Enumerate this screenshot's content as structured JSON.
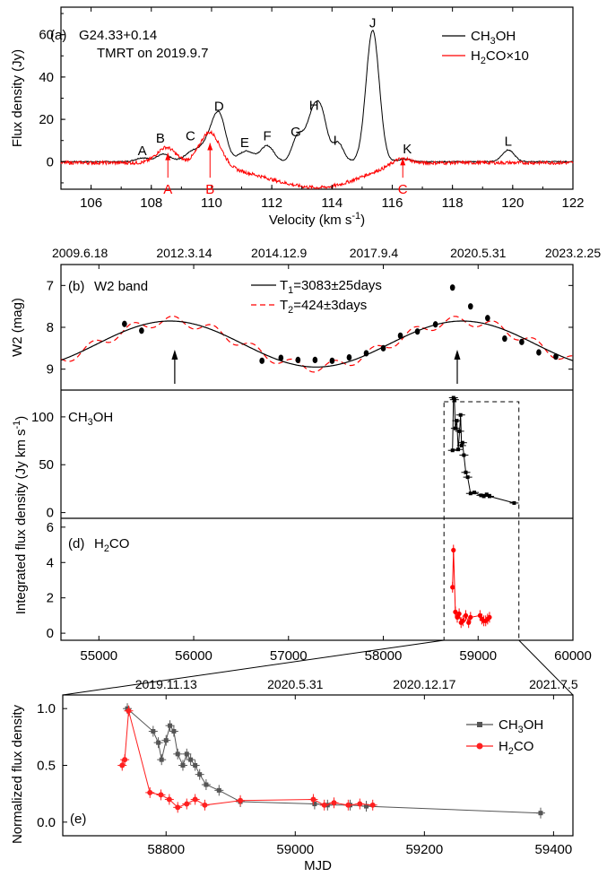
{
  "chart_data": [
    {
      "panel": "(a)",
      "type": "line",
      "title": "G24.33+0.14",
      "subtitle": "TMRT on 2019.9.7",
      "xlabel": "Velocity (km s",
      "xlabel_sup": "-1",
      "xlabel_close": ")",
      "ylabel": "Flux density (Jy)",
      "xlim": [
        105,
        122
      ],
      "ylim": [
        -13,
        73
      ],
      "xticks": [
        106,
        108,
        110,
        112,
        114,
        116,
        118,
        120,
        122
      ],
      "yticks": [
        0,
        20,
        40,
        60
      ],
      "legend": {
        "position": "top-right",
        "entries": [
          {
            "label": "CH",
            "sub": "3",
            "rest": "OH"
          },
          {
            "label": "H",
            "sub": "2",
            "rest": "CO×10"
          }
        ]
      },
      "series": [
        {
          "name": "CH3OH",
          "color": "#000000",
          "baseline": 0.0,
          "noise": 0.25,
          "components": [
            {
              "v": 107.7,
              "amp": 1.8,
              "w": 0.22
            },
            {
              "v": 108.4,
              "amp": 3.5,
              "w": 0.22
            },
            {
              "v": 109.45,
              "amp": 5.5,
              "w": 0.3
            },
            {
              "v": 109.9,
              "amp": 6.5,
              "w": 0.2
            },
            {
              "v": 110.25,
              "amp": 22.0,
              "w": 0.22
            },
            {
              "v": 111.15,
              "amp": 5.0,
              "w": 0.25
            },
            {
              "v": 111.85,
              "amp": 7.5,
              "w": 0.22
            },
            {
              "v": 112.85,
              "amp": 11.0,
              "w": 0.18
            },
            {
              "v": 113.4,
              "amp": 24.0,
              "w": 0.25
            },
            {
              "v": 113.7,
              "amp": 12.0,
              "w": 0.18
            },
            {
              "v": 114.2,
              "amp": 9.0,
              "w": 0.18
            },
            {
              "v": 115.35,
              "amp": 62.0,
              "w": 0.22
            },
            {
              "v": 116.4,
              "amp": 1.2,
              "w": 0.2
            },
            {
              "v": 119.85,
              "amp": 5.5,
              "w": 0.2
            }
          ]
        },
        {
          "name": "H2CO×10",
          "color": "#ff0000",
          "baseline": -0.5,
          "noise": 0.8,
          "components": [
            {
              "v": 108.5,
              "amp": 7.5,
              "w": 0.32
            },
            {
              "v": 109.95,
              "amp": 16.0,
              "w": 0.35
            },
            {
              "v": 112.2,
              "amp": -4.0,
              "w": 1.6
            },
            {
              "v": 113.2,
              "amp": -6.0,
              "w": 1.2
            },
            {
              "v": 114.4,
              "amp": -4.5,
              "w": 1.0
            },
            {
              "v": 116.3,
              "amp": 3.0,
              "w": 0.3
            }
          ]
        }
      ],
      "labels_black": [
        {
          "text": "A",
          "x": 107.7,
          "y": 3
        },
        {
          "text": "B",
          "x": 108.3,
          "y": 9
        },
        {
          "text": "C",
          "x": 109.3,
          "y": 10
        },
        {
          "text": "D",
          "x": 110.25,
          "y": 24
        },
        {
          "text": "E",
          "x": 111.1,
          "y": 7
        },
        {
          "text": "F",
          "x": 111.85,
          "y": 10
        },
        {
          "text": "G",
          "x": 112.8,
          "y": 12
        },
        {
          "text": "H",
          "x": 113.4,
          "y": 24.5
        },
        {
          "text": "I",
          "x": 114.1,
          "y": 8
        },
        {
          "text": "J",
          "x": 115.35,
          "y": 63.5
        },
        {
          "text": "K",
          "x": 116.5,
          "y": 4
        },
        {
          "text": "L",
          "x": 119.85,
          "y": 7.5
        }
      ],
      "labels_red": [
        {
          "text": "A",
          "x": 108.55,
          "y": -13.5
        },
        {
          "text": "B",
          "x": 109.95,
          "y": -13.5
        },
        {
          "text": "C",
          "x": 116.35,
          "y": -13.5
        }
      ]
    },
    {
      "panel": "(b)",
      "type": "scatter",
      "title": "W2 band",
      "ylabel": "W2 (mag)",
      "xlim": [
        54600,
        60000
      ],
      "ylim_reversed": [
        9.5,
        6.5
      ],
      "yticks": [
        7,
        8,
        9
      ],
      "top_date_labels": [
        {
          "mjd": 54800,
          "text": "2009.6.18"
        },
        {
          "mjd": 55900,
          "text": "2012.3.14"
        },
        {
          "mjd": 56900,
          "text": "2014.12.9"
        },
        {
          "mjd": 57900,
          "text": "2017.9.4"
        },
        {
          "mjd": 59000,
          "text": "2020.5.31"
        },
        {
          "mjd": 60000,
          "text": "2023.2.25"
        }
      ],
      "fits": [
        {
          "name": "T",
          "sub": "1",
          "rest": "=3083±25days",
          "period": 3083,
          "mean": 8.4,
          "amp": 0.55,
          "peak": 55750,
          "color": "#000000",
          "dash": ""
        },
        {
          "name": "T",
          "sub": "2",
          "rest": "=424±3days",
          "period": 424,
          "amp": 0.12,
          "peak": 55780,
          "color": "#ff0000",
          "dash": "6,4"
        }
      ],
      "arrows_mjd": [
        55800,
        58780
      ],
      "points": [
        [
          55270,
          7.92
        ],
        [
          55450,
          8.08
        ],
        [
          56720,
          8.8
        ],
        [
          56920,
          8.73
        ],
        [
          57100,
          8.78
        ],
        [
          57280,
          8.78
        ],
        [
          57460,
          8.8
        ],
        [
          57640,
          8.72
        ],
        [
          57820,
          8.62
        ],
        [
          58000,
          8.5
        ],
        [
          58180,
          8.2
        ],
        [
          58360,
          8.1
        ],
        [
          58550,
          7.93
        ],
        [
          58730,
          7.05
        ],
        [
          58920,
          7.5
        ],
        [
          59100,
          7.78
        ],
        [
          59280,
          8.27
        ],
        [
          59460,
          8.35
        ],
        [
          59640,
          8.6
        ],
        [
          59820,
          8.7
        ]
      ]
    },
    {
      "panel": "(c)",
      "type": "line",
      "title": "CH",
      "title_sub": "3",
      "title_rest": "OH",
      "ylabel": "Integrated flux density (Jy km s",
      "ylabel_sup": "-1",
      "ylabel_close": ")",
      "xlim": [
        54600,
        60000
      ],
      "ylim": [
        -6,
        128
      ],
      "yticks": [
        0,
        50,
        100
      ],
      "points": [
        [
          58730,
          65
        ],
        [
          58740,
          120
        ],
        [
          58750,
          118
        ],
        [
          58760,
          88
        ],
        [
          58775,
          96
        ],
        [
          58790,
          66
        ],
        [
          58805,
          85
        ],
        [
          58815,
          102
        ],
        [
          58825,
          70
        ],
        [
          58835,
          73
        ],
        [
          58850,
          60
        ],
        [
          58870,
          42
        ],
        [
          58890,
          37
        ],
        [
          58920,
          20
        ],
        [
          58960,
          21
        ],
        [
          59030,
          18
        ],
        [
          59060,
          17
        ],
        [
          59090,
          19
        ],
        [
          59120,
          17
        ],
        [
          59380,
          10
        ]
      ]
    },
    {
      "panel": "(d)",
      "type": "line",
      "title": "H",
      "title_sub": "2",
      "title_rest": "CO",
      "xlim": [
        54600,
        60000
      ],
      "ylim": [
        -0.4,
        6.5
      ],
      "yticks": [
        0,
        2,
        4,
        6
      ],
      "xticks": [
        55000,
        56000,
        57000,
        58000,
        59000,
        60000
      ],
      "points": [
        [
          58730,
          2.6
        ],
        [
          58740,
          4.7
        ],
        [
          58760,
          1.2
        ],
        [
          58780,
          0.9
        ],
        [
          58800,
          1.1
        ],
        [
          58820,
          0.6
        ],
        [
          58840,
          0.7
        ],
        [
          58870,
          1.0
        ],
        [
          58900,
          0.6
        ],
        [
          58920,
          0.9
        ],
        [
          59020,
          1.0
        ],
        [
          59040,
          0.8
        ],
        [
          59060,
          0.7
        ],
        [
          59080,
          0.7
        ],
        [
          59100,
          0.8
        ],
        [
          59120,
          0.9
        ]
      ]
    },
    {
      "panel": "(e)",
      "type": "line",
      "xlabel": "MJD",
      "ylabel": "Normalized flux density",
      "xlim": [
        58640,
        59430
      ],
      "ylim": [
        -0.12,
        1.12
      ],
      "xticks": [
        58800,
        59000,
        59200,
        59400
      ],
      "yticks": [
        0.0,
        0.5,
        1.0
      ],
      "yticklabels": [
        "0.0",
        "0.5",
        "1.0"
      ],
      "top_date_labels": [
        {
          "mjd": 58800,
          "text": "2019.11.13"
        },
        {
          "mjd": 59000,
          "text": "2020.5.31"
        },
        {
          "mjd": 59200,
          "text": "2020.12.17"
        },
        {
          "mjd": 59400,
          "text": "2021.7.5"
        }
      ],
      "legend": {
        "position": "top-right",
        "entries": [
          {
            "label": "CH",
            "sub": "3",
            "rest": "OH",
            "color": "#555555",
            "marker": "square"
          },
          {
            "label": "H",
            "sub": "2",
            "rest": "CO",
            "color": "#ff2020",
            "marker": "circle"
          }
        ]
      },
      "series": [
        {
          "name": "CH3OH",
          "color": "#555555",
          "points": [
            [
              58740,
              1.0
            ],
            [
              58780,
              0.8
            ],
            [
              58788,
              0.7
            ],
            [
              58793,
              0.55
            ],
            [
              58800,
              0.72
            ],
            [
              58806,
              0.85
            ],
            [
              58812,
              0.8
            ],
            [
              58818,
              0.6
            ],
            [
              58826,
              0.5
            ],
            [
              58832,
              0.6
            ],
            [
              58838,
              0.55
            ],
            [
              58845,
              0.5
            ],
            [
              58852,
              0.42
            ],
            [
              58862,
              0.33
            ],
            [
              58882,
              0.28
            ],
            [
              58915,
              0.18
            ],
            [
              59030,
              0.16
            ],
            [
              59050,
              0.15
            ],
            [
              59085,
              0.15
            ],
            [
              59110,
              0.14
            ],
            [
              59380,
              0.08
            ]
          ]
        },
        {
          "name": "H2CO",
          "color": "#ff2020",
          "points": [
            [
              58732,
              0.5
            ],
            [
              58736,
              0.55
            ],
            [
              58742,
              0.98
            ],
            [
              58775,
              0.26
            ],
            [
              58792,
              0.24
            ],
            [
              58805,
              0.2
            ],
            [
              58818,
              0.13
            ],
            [
              58832,
              0.16
            ],
            [
              58845,
              0.2
            ],
            [
              58860,
              0.15
            ],
            [
              58915,
              0.19
            ],
            [
              59028,
              0.2
            ],
            [
              59045,
              0.15
            ],
            [
              59060,
              0.17
            ],
            [
              59082,
              0.15
            ],
            [
              59100,
              0.16
            ],
            [
              59120,
              0.15
            ]
          ]
        }
      ]
    }
  ]
}
